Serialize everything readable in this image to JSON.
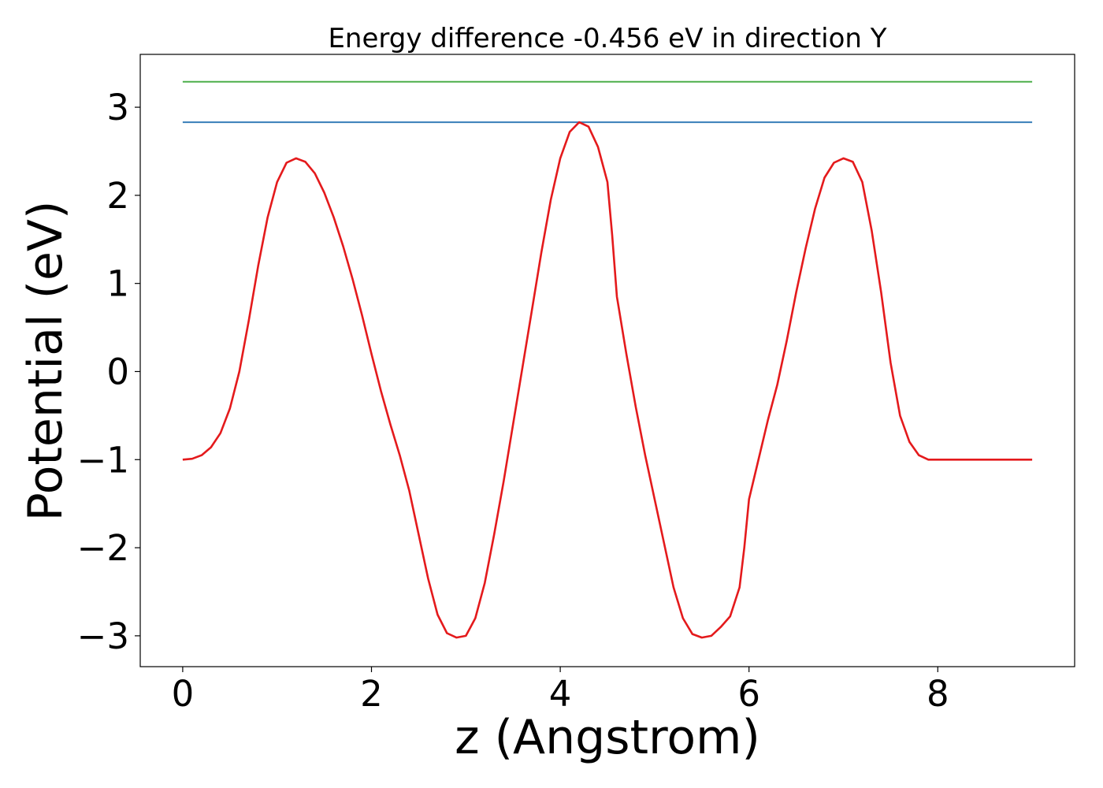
{
  "chart_data": {
    "type": "line",
    "title": "Energy difference -0.456 eV in direction Y",
    "xlabel": "z (Angstrom)",
    "ylabel": "Potential (eV)",
    "xlim": [
      -0.45,
      9.45
    ],
    "ylim": [
      -3.35,
      3.6
    ],
    "xticks": [
      0,
      2,
      4,
      6,
      8
    ],
    "yticks": [
      -3,
      -2,
      -1,
      0,
      1,
      2,
      3
    ],
    "xtick_labels": [
      "0",
      "2",
      "4",
      "6",
      "8"
    ],
    "ytick_labels": [
      "−3",
      "−2",
      "−1",
      "0",
      "1",
      "2",
      "3"
    ],
    "grid": false,
    "series": [
      {
        "color": "#4daf4a",
        "x": [
          0,
          9
        ],
        "y": [
          3.29,
          3.29
        ]
      },
      {
        "color": "#377eb8",
        "x": [
          0,
          9
        ],
        "y": [
          2.83,
          2.83
        ]
      },
      {
        "color": "#e41a1c",
        "x": [
          0.0,
          0.1,
          0.2,
          0.3,
          0.4,
          0.5,
          0.6,
          0.7,
          0.8,
          0.9,
          1.0,
          1.1,
          1.2,
          1.3,
          1.4,
          1.5,
          1.6,
          1.7,
          1.8,
          1.9,
          2.0,
          2.1,
          2.2,
          2.3,
          2.4,
          2.5,
          2.6,
          2.7,
          2.8,
          2.9,
          3.0,
          3.05,
          3.1,
          3.2,
          3.3,
          3.4,
          3.5,
          3.6,
          3.7,
          3.8,
          3.9,
          4.0,
          4.1,
          4.2,
          4.3,
          4.4,
          4.5,
          4.55,
          4.6,
          4.7,
          4.8,
          4.9,
          5.0,
          5.1,
          5.2,
          5.3,
          5.4,
          5.5,
          5.6,
          5.7,
          5.8,
          5.9,
          5.95,
          6.0,
          6.1,
          6.2,
          6.3,
          6.4,
          6.5,
          6.6,
          6.7,
          6.8,
          6.9,
          7.0,
          7.1,
          7.2,
          7.3,
          7.4,
          7.5,
          7.6,
          7.7,
          7.8,
          7.9,
          8.0,
          8.1,
          8.2,
          8.3,
          8.4,
          8.5,
          8.6,
          8.7,
          8.8,
          8.9,
          9.0
        ],
        "y": [
          -1.0,
          -0.99,
          -0.95,
          -0.86,
          -0.7,
          -0.42,
          0.0,
          0.58,
          1.2,
          1.75,
          2.15,
          2.37,
          2.42,
          2.38,
          2.25,
          2.03,
          1.75,
          1.42,
          1.05,
          0.64,
          0.2,
          -0.22,
          -0.6,
          -0.95,
          -1.35,
          -1.85,
          -2.35,
          -2.76,
          -2.97,
          -3.02,
          -3.0,
          -2.9,
          -2.8,
          -2.4,
          -1.85,
          -1.25,
          -0.6,
          0.05,
          0.7,
          1.35,
          1.95,
          2.42,
          2.72,
          2.83,
          2.78,
          2.55,
          2.15,
          1.55,
          0.85,
          0.2,
          -0.4,
          -0.95,
          -1.45,
          -1.95,
          -2.45,
          -2.8,
          -2.98,
          -3.02,
          -3.0,
          -2.9,
          -2.78,
          -2.45,
          -2.0,
          -1.45,
          -1.0,
          -0.55,
          -0.15,
          0.35,
          0.9,
          1.4,
          1.85,
          2.2,
          2.37,
          2.42,
          2.38,
          2.15,
          1.6,
          0.9,
          0.1,
          -0.5,
          -0.8,
          -0.95,
          -1.0,
          -1.0,
          -1.0,
          -1.0,
          -1.0,
          -1.0,
          -1.0,
          -1.0,
          -1.0,
          -1.0,
          -1.0,
          -1.0
        ]
      }
    ]
  }
}
